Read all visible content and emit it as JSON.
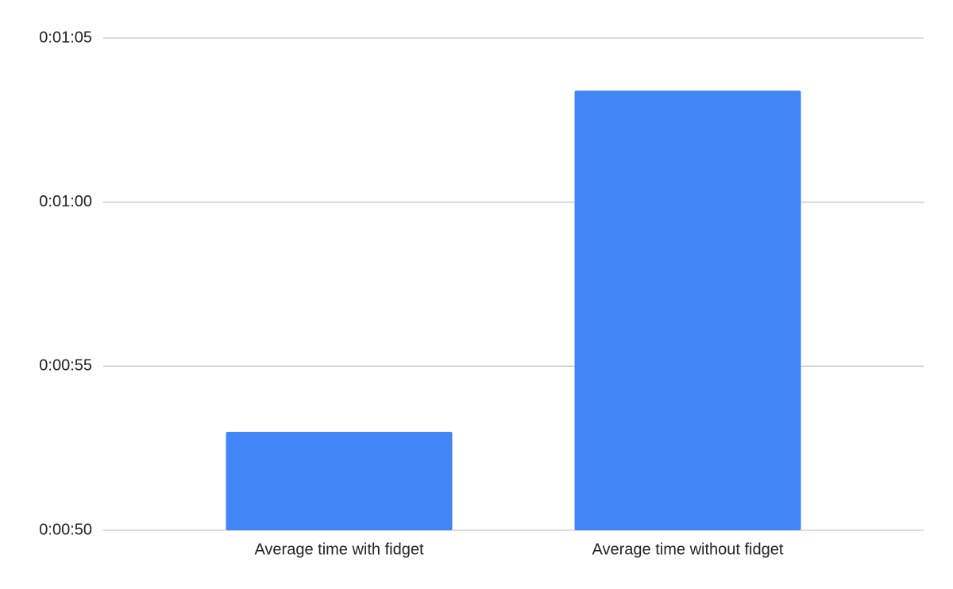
{
  "chart_data": {
    "type": "bar",
    "categories": [
      "Average time with fidget",
      "Average time without fidget"
    ],
    "values": [
      53,
      63.4
    ],
    "color": "#4285f4",
    "ylim": [
      50,
      65
    ],
    "yticks": [
      {
        "value": 50,
        "label": "0:00:50"
      },
      {
        "value": 55,
        "label": "0:00:55"
      },
      {
        "value": 60,
        "label": "0:01:00"
      },
      {
        "value": 65,
        "label": "0:01:05"
      }
    ],
    "grid": true
  }
}
